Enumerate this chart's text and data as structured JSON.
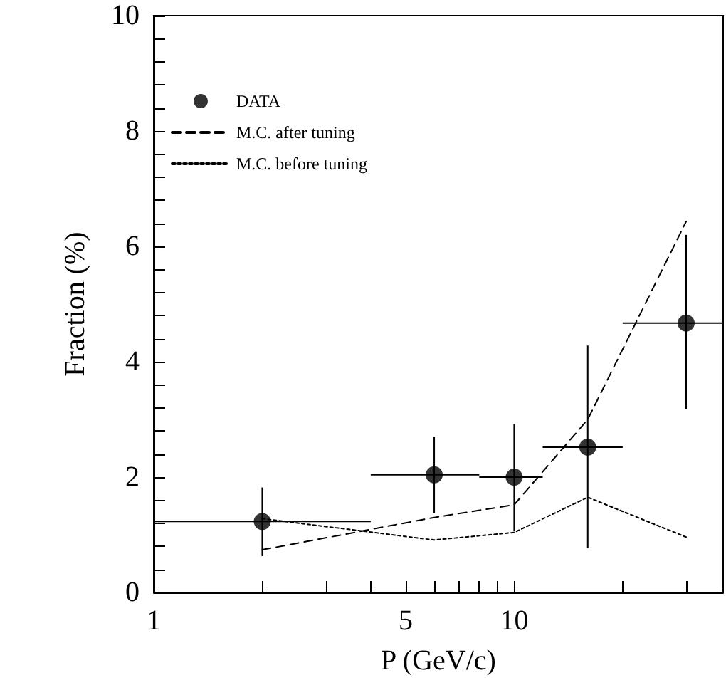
{
  "chart_data": {
    "type": "scatter",
    "xlabel": "P (GeV/c)",
    "ylabel": "Fraction (%)",
    "log": "x",
    "xlim": [
      1,
      38
    ],
    "xticks": [
      1,
      {
        "value": 2,
        "label": null
      },
      {
        "value": 3,
        "label": null
      },
      {
        "value": 4,
        "label": null
      },
      5,
      {
        "value": 6,
        "label": null
      },
      {
        "value": 7,
        "label": null
      },
      {
        "value": 8,
        "label": null
      },
      {
        "value": 9,
        "label": null
      },
      10,
      {
        "value": 20,
        "label": null
      },
      {
        "value": 30,
        "label": null
      }
    ],
    "ylim": [
      0,
      10
    ],
    "yticks": [
      0,
      {
        "value": 0.4,
        "label": null
      },
      {
        "value": 0.8,
        "label": null
      },
      {
        "value": 1.2,
        "label": null
      },
      {
        "value": 1.6,
        "label": null
      },
      2,
      {
        "value": 2.4,
        "label": null
      },
      {
        "value": 2.8,
        "label": null
      },
      {
        "value": 3.2,
        "label": null
      },
      {
        "value": 3.6,
        "label": null
      },
      4,
      {
        "value": 4.4,
        "label": null
      },
      {
        "value": 4.8,
        "label": null
      },
      {
        "value": 5.2,
        "label": null
      },
      {
        "value": 5.6,
        "label": null
      },
      6,
      {
        "value": 6.4,
        "label": null
      },
      {
        "value": 6.8,
        "label": null
      },
      {
        "value": 7.2,
        "label": null
      },
      {
        "value": 7.6,
        "label": null
      },
      8,
      {
        "value": 8.4,
        "label": null
      },
      {
        "value": 8.8,
        "label": null
      },
      {
        "value": 9.2,
        "label": null
      },
      {
        "value": 9.6,
        "label": null
      },
      10
    ],
    "grid": false,
    "legend": "top left",
    "series": [
      {
        "name": "DATA",
        "marker": "circle",
        "color": "#000000",
        "x": [
          2,
          6,
          10,
          16,
          30
        ],
        "values": [
          1.23,
          2.04,
          2.0,
          2.52,
          4.67
        ],
        "errors": [
          [
            0.63,
            1.82
          ],
          [
            1.38,
            2.7
          ],
          [
            1.06,
            2.92
          ],
          [
            0.77,
            4.28
          ],
          [
            3.18,
            6.2
          ]
        ],
        "xerrors": [
          [
            1,
            4
          ],
          [
            4,
            8
          ],
          [
            8,
            12
          ],
          [
            12,
            20
          ],
          [
            20,
            38
          ]
        ]
      },
      {
        "name": "M.C. after tuning",
        "type": "line",
        "line_style": "dashed",
        "marker": "none",
        "color": "#000000",
        "x": [
          2,
          6,
          10,
          16,
          30
        ],
        "values": [
          0.74,
          1.3,
          1.52,
          3.0,
          6.43
        ]
      },
      {
        "name": "M.C. before tuning",
        "type": "line",
        "line_style": "dotted",
        "marker": "none",
        "color": "#000000",
        "x": [
          2,
          6,
          10,
          16,
          30
        ],
        "values": [
          1.28,
          0.91,
          1.04,
          1.65,
          0.96
        ]
      }
    ]
  }
}
